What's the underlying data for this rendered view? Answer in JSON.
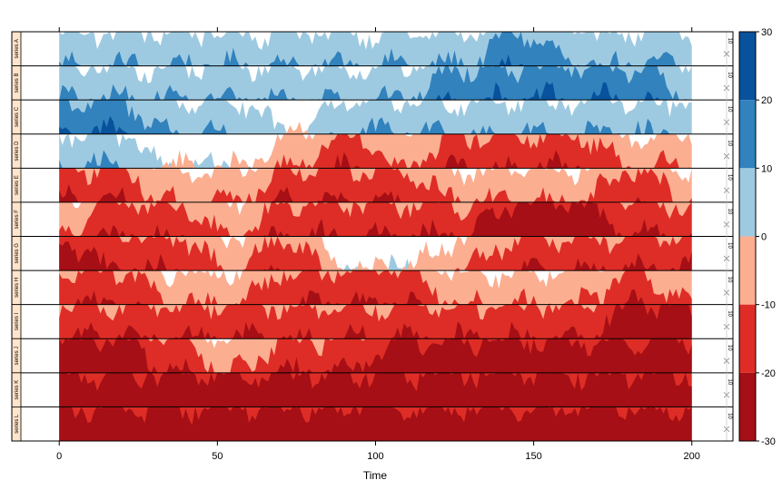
{
  "chart_data": {
    "type": "area",
    "chart_kind": "horizon",
    "xlabel": "Time",
    "xlim": [
      -15,
      213
    ],
    "x_ticks": [
      0,
      50,
      100,
      150,
      200
    ],
    "x_tick_labels": [
      "0",
      "50",
      "100",
      "150",
      "200"
    ],
    "n_points": 200,
    "panels": [
      {
        "name": "series A",
        "right_label": "10",
        "levels": [
          1,
          1,
          1,
          1,
          1,
          1,
          1,
          1,
          2,
          1,
          1,
          1
        ]
      },
      {
        "name": "series B",
        "right_label": "10",
        "levels": [
          1,
          1,
          1,
          1,
          1,
          1,
          1,
          2,
          2,
          2,
          2,
          1
        ]
      },
      {
        "name": "series C",
        "right_label": "10",
        "levels": [
          2,
          2,
          1,
          1,
          0,
          1,
          1,
          1,
          1,
          1,
          1,
          1
        ]
      },
      {
        "name": "series D",
        "right_label": "10",
        "levels": [
          1,
          1,
          0,
          0,
          -1,
          -2,
          -1,
          -2,
          -2,
          -2,
          -1,
          -1
        ]
      },
      {
        "name": "series E",
        "right_label": "10",
        "levels": [
          -2,
          -2,
          -1,
          -1,
          -2,
          -2,
          -2,
          -1,
          -1,
          -1,
          -2,
          -1
        ]
      },
      {
        "name": "series F",
        "right_label": "10",
        "levels": [
          -1,
          -2,
          -2,
          -1,
          -2,
          -2,
          -2,
          -2,
          -3,
          -3,
          -2,
          -2
        ]
      },
      {
        "name": "series G",
        "right_label": "10",
        "levels": [
          -3,
          -2,
          -2,
          -1,
          -2,
          0,
          0,
          -1,
          -2,
          -2,
          -2,
          -2
        ]
      },
      {
        "name": "series H",
        "right_label": "10",
        "levels": [
          -2,
          -2,
          -1,
          -1,
          -2,
          -2,
          -2,
          -1,
          -1,
          -1,
          -2,
          -1
        ]
      },
      {
        "name": "series I",
        "right_label": "10",
        "levels": [
          -2,
          -2,
          -2,
          -2,
          -2,
          -2,
          -2,
          -2,
          -2,
          -2,
          -3,
          -3
        ]
      },
      {
        "name": "series J",
        "right_label": "10",
        "levels": [
          -3,
          -3,
          -2,
          -1,
          -2,
          -2,
          -3,
          -3,
          -3,
          -3,
          -3,
          -3
        ]
      },
      {
        "name": "series K",
        "right_label": "10",
        "levels": [
          -3,
          -3,
          -3,
          -3,
          -3,
          -3,
          -3,
          -3,
          -3,
          -3,
          -3,
          -3
        ]
      },
      {
        "name": "series L",
        "right_label": "10",
        "levels": [
          -3,
          -3,
          -3,
          -3,
          -3,
          -3,
          -3,
          -3,
          -3,
          -3,
          -3,
          -3
        ]
      }
    ],
    "legend": {
      "ticks": [
        30,
        20,
        10,
        0,
        -10,
        -20,
        -30
      ],
      "tick_labels": [
        "30",
        "20",
        "10",
        "0",
        "-10",
        "-20",
        "-30"
      ],
      "band_edges": [
        30,
        20,
        10,
        0,
        -10,
        -20,
        -30
      ],
      "band_colors": [
        "#08519c",
        "#3182bd",
        "#9ecae1",
        "#fcae91",
        "#de2d26",
        "#a50f15"
      ]
    },
    "colors": {
      "pos1": "#9ecae1",
      "pos2": "#3182bd",
      "pos3": "#08519c",
      "neg1": "#fcae91",
      "neg2": "#de2d26",
      "neg3": "#a50f15"
    }
  }
}
